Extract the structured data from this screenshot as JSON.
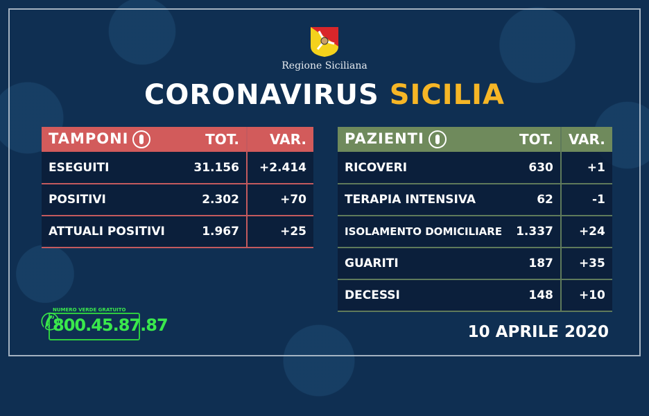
{
  "header": {
    "region": "Regione Siciliana",
    "title_white": "CORONAVIRUS",
    "title_yellow": "SICILIA"
  },
  "colors": {
    "background": "#0f2f52",
    "accent_yellow": "#f6b626",
    "tamponi_header": "#d25b5b",
    "pazienti_header": "#6f8a5c",
    "phone_green": "#3ae84c"
  },
  "tamponi": {
    "title": "TAMPONI",
    "icon": "swab-icon",
    "tot": "TOT.",
    "var": "VAR.",
    "rows": [
      {
        "label": "ESEGUITI",
        "tot": "31.156",
        "var": "+2.414"
      },
      {
        "label": "POSITIVI",
        "tot": "2.302",
        "var": "+70"
      },
      {
        "label": "ATTUALI POSITIVI",
        "tot": "1.967",
        "var": "+25"
      }
    ]
  },
  "pazienti": {
    "title": "PAZIENTI",
    "icon": "person-icon",
    "tot": "TOT.",
    "var": "VAR.",
    "rows": [
      {
        "label": "RICOVERI",
        "tot": "630",
        "var": "+1"
      },
      {
        "label": "TERAPIA INTENSIVA",
        "tot": "62",
        "var": "-1"
      },
      {
        "label": "ISOLAMENTO DOMICILIARE",
        "tot": "1.337",
        "var": "+24"
      },
      {
        "label": "GUARITI",
        "tot": "187",
        "var": "+35"
      },
      {
        "label": "DECESSI",
        "tot": "148",
        "var": "+10"
      }
    ]
  },
  "phone": {
    "caption": "NUMERO VERDE GRATUITO",
    "number": "800.45.87.87"
  },
  "date": "10 APRILE 2020"
}
